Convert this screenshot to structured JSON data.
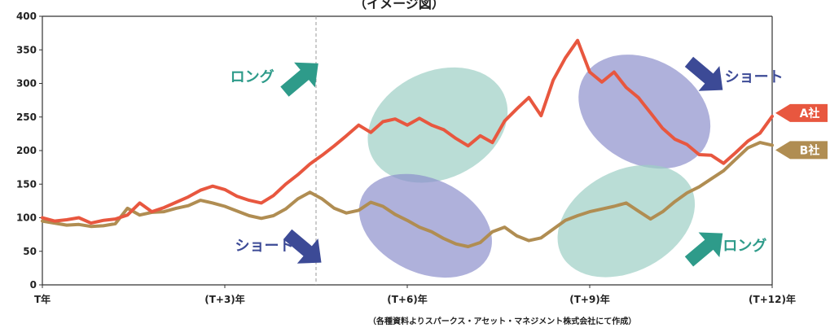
{
  "chart_data": {
    "type": "line",
    "title": "（イメージ図）",
    "source_note": "（各種資料よりスパークス・アセット・マネジメント株式会社にて作成）",
    "x_ticks": [
      "T年",
      "(T+3)年",
      "(T+6)年",
      "(T+9)年",
      "(T+12)年"
    ],
    "x_range": [
      0,
      12
    ],
    "ylim": [
      0,
      400
    ],
    "y_ticks": [
      0,
      50,
      100,
      150,
      200,
      250,
      300,
      350,
      400
    ],
    "grid": false,
    "event_marker_year": 4.5,
    "series": [
      {
        "name": "A社",
        "color": "#e8573f",
        "points": [
          [
            0,
            100
          ],
          [
            0.2,
            95
          ],
          [
            0.4,
            97
          ],
          [
            0.6,
            100
          ],
          [
            0.8,
            92
          ],
          [
            1.0,
            96
          ],
          [
            1.2,
            98
          ],
          [
            1.4,
            104
          ],
          [
            1.6,
            122
          ],
          [
            1.8,
            109
          ],
          [
            2.0,
            115
          ],
          [
            2.2,
            123
          ],
          [
            2.4,
            131
          ],
          [
            2.6,
            141
          ],
          [
            2.8,
            147
          ],
          [
            3.0,
            142
          ],
          [
            3.2,
            132
          ],
          [
            3.4,
            126
          ],
          [
            3.6,
            122
          ],
          [
            3.8,
            133
          ],
          [
            4.0,
            150
          ],
          [
            4.2,
            164
          ],
          [
            4.4,
            180
          ],
          [
            4.6,
            193
          ],
          [
            4.8,
            207
          ],
          [
            5.0,
            222
          ],
          [
            5.2,
            238
          ],
          [
            5.4,
            227
          ],
          [
            5.6,
            243
          ],
          [
            5.8,
            247
          ],
          [
            6.0,
            238
          ],
          [
            6.2,
            248
          ],
          [
            6.4,
            238
          ],
          [
            6.6,
            231
          ],
          [
            6.8,
            218
          ],
          [
            7.0,
            207
          ],
          [
            7.2,
            222
          ],
          [
            7.4,
            212
          ],
          [
            7.6,
            244
          ],
          [
            7.8,
            262
          ],
          [
            8.0,
            279
          ],
          [
            8.2,
            252
          ],
          [
            8.4,
            305
          ],
          [
            8.6,
            338
          ],
          [
            8.8,
            364
          ],
          [
            9.0,
            317
          ],
          [
            9.2,
            302
          ],
          [
            9.4,
            317
          ],
          [
            9.6,
            294
          ],
          [
            9.8,
            279
          ],
          [
            10.0,
            256
          ],
          [
            10.2,
            233
          ],
          [
            10.4,
            217
          ],
          [
            10.6,
            209
          ],
          [
            10.8,
            194
          ],
          [
            11.0,
            193
          ],
          [
            11.2,
            181
          ],
          [
            11.4,
            197
          ],
          [
            11.6,
            214
          ],
          [
            11.8,
            226
          ],
          [
            12.0,
            251
          ]
        ]
      },
      {
        "name": "B社",
        "color": "#b08d52",
        "points": [
          [
            0,
            95
          ],
          [
            0.2,
            92
          ],
          [
            0.4,
            89
          ],
          [
            0.6,
            90
          ],
          [
            0.8,
            87
          ],
          [
            1.0,
            88
          ],
          [
            1.2,
            91
          ],
          [
            1.4,
            114
          ],
          [
            1.6,
            104
          ],
          [
            1.8,
            108
          ],
          [
            2.0,
            109
          ],
          [
            2.2,
            114
          ],
          [
            2.4,
            118
          ],
          [
            2.6,
            126
          ],
          [
            2.8,
            122
          ],
          [
            3.0,
            117
          ],
          [
            3.2,
            110
          ],
          [
            3.4,
            103
          ],
          [
            3.6,
            99
          ],
          [
            3.8,
            103
          ],
          [
            4.0,
            113
          ],
          [
            4.2,
            128
          ],
          [
            4.4,
            138
          ],
          [
            4.6,
            128
          ],
          [
            4.8,
            114
          ],
          [
            5.0,
            107
          ],
          [
            5.2,
            111
          ],
          [
            5.4,
            123
          ],
          [
            5.6,
            117
          ],
          [
            5.8,
            105
          ],
          [
            6.0,
            96
          ],
          [
            6.2,
            86
          ],
          [
            6.4,
            79
          ],
          [
            6.6,
            69
          ],
          [
            6.8,
            61
          ],
          [
            7.0,
            57
          ],
          [
            7.2,
            63
          ],
          [
            7.4,
            79
          ],
          [
            7.6,
            86
          ],
          [
            7.8,
            73
          ],
          [
            8.0,
            66
          ],
          [
            8.2,
            70
          ],
          [
            8.4,
            83
          ],
          [
            8.6,
            96
          ],
          [
            8.8,
            103
          ],
          [
            9.0,
            109
          ],
          [
            9.2,
            113
          ],
          [
            9.4,
            117
          ],
          [
            9.6,
            122
          ],
          [
            9.8,
            110
          ],
          [
            10.0,
            98
          ],
          [
            10.2,
            109
          ],
          [
            10.4,
            124
          ],
          [
            10.6,
            137
          ],
          [
            10.8,
            146
          ],
          [
            11.0,
            158
          ],
          [
            11.2,
            170
          ],
          [
            11.4,
            187
          ],
          [
            11.6,
            204
          ],
          [
            11.8,
            212
          ],
          [
            12.0,
            208
          ]
        ]
      }
    ],
    "highlights": [
      {
        "color": "#9ccfc4",
        "x_center": 6.5,
        "y_center": 238,
        "x_span": 2.4,
        "y_span": 160,
        "tilt": -25
      },
      {
        "color": "#8d90cc",
        "x_center": 9.9,
        "y_center": 258,
        "x_span": 2.3,
        "y_span": 155,
        "tilt": 30
      },
      {
        "color": "#8d90cc",
        "x_center": 6.3,
        "y_center": 88,
        "x_span": 2.3,
        "y_span": 140,
        "tilt": 25
      },
      {
        "color": "#9ccfc4",
        "x_center": 9.6,
        "y_center": 95,
        "x_span": 2.4,
        "y_span": 150,
        "tilt": -28
      }
    ],
    "annotations": [
      {
        "text": "ロング",
        "color": "#2e9b8a",
        "x": 3.45,
        "y": 310
      },
      {
        "text": "ショート",
        "color": "#3c4a96",
        "x": 11.7,
        "y": 310
      },
      {
        "text": "ショート",
        "color": "#3c4a96",
        "x": 3.65,
        "y": 58
      },
      {
        "text": "ロング",
        "color": "#2e9b8a",
        "x": 11.55,
        "y": 58
      }
    ],
    "arrows": [
      {
        "color": "#2e9b8a",
        "dir": "up-right",
        "x": 4.25,
        "y": 308
      },
      {
        "color": "#3c4a96",
        "dir": "down-right",
        "x": 10.9,
        "y": 312
      },
      {
        "color": "#3c4a96",
        "dir": "down-right",
        "x": 4.3,
        "y": 55
      },
      {
        "color": "#2e9b8a",
        "dir": "up-right",
        "x": 10.9,
        "y": 55
      }
    ],
    "series_tags": [
      {
        "text": "A社",
        "color": "#e8573f",
        "series": 0
      },
      {
        "text": "B社",
        "color": "#b08d52",
        "series": 1
      }
    ]
  }
}
